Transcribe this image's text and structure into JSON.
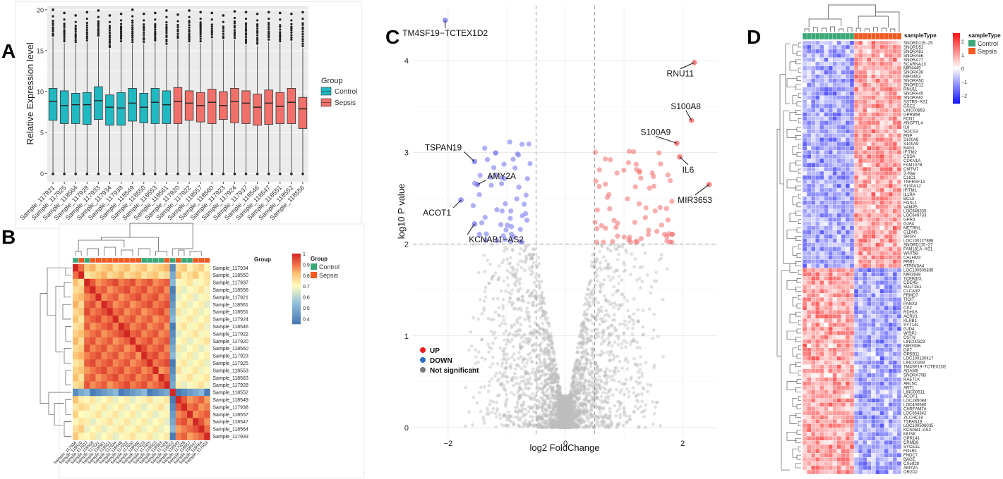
{
  "panels": {
    "a": "A",
    "b": "B",
    "c": "C",
    "d": "D"
  },
  "colors": {
    "control": "#20b9c2",
    "sepsis": "#f2706a",
    "anno_control": "#3aa776",
    "anno_sepsis": "#f25a1f",
    "up": "#f36b6b",
    "down": "#7a7cf0",
    "ns": "#bdbdbd"
  },
  "chart_data": [
    {
      "id": "A",
      "type": "box",
      "title": "",
      "ylabel": "Relative Expression level",
      "xlabel": "",
      "ylim": [
        -1,
        20.5
      ],
      "yticks": [
        "0",
        "5",
        "10",
        "15",
        "20"
      ],
      "legend": {
        "title": "Group",
        "items": [
          "Control",
          "Sepsis"
        ]
      },
      "categories": [
        "Sample_117921",
        "Sample_117925",
        "Sample_118564",
        "Sample_117928",
        "Sample_117933",
        "Sample_117934",
        "Sample_117938",
        "Sample_118549",
        "Sample_118550",
        "Sample_118553",
        "Sample_118561",
        "Sample_117920",
        "Sample_117922",
        "Sample_118557",
        "Sample_118560",
        "Sample_117923",
        "Sample_117924",
        "Sample_117937",
        "Sample_118546",
        "Sample_118547",
        "Sample_118551",
        "Sample_118552",
        "Sample_118556"
      ],
      "groups": [
        "Control",
        "Control",
        "Control",
        "Control",
        "Control",
        "Control",
        "Control",
        "Control",
        "Control",
        "Control",
        "Control",
        "Sepsis",
        "Sepsis",
        "Sepsis",
        "Sepsis",
        "Sepsis",
        "Sepsis",
        "Sepsis",
        "Sepsis",
        "Sepsis",
        "Sepsis",
        "Sepsis",
        "Sepsis"
      ],
      "q1": [
        6.5,
        6.1,
        6.1,
        6.0,
        6.6,
        5.9,
        5.9,
        6.4,
        6.2,
        6.1,
        6.1,
        6.1,
        6.5,
        6.3,
        6.1,
        6.6,
        6.2,
        6.1,
        5.9,
        6.0,
        6.1,
        6.1,
        5.5
      ],
      "median": [
        8.8,
        8.3,
        8.4,
        8.4,
        8.9,
        8.1,
        8.0,
        8.6,
        8.1,
        8.7,
        8.4,
        8.8,
        8.6,
        8.3,
        8.7,
        8.3,
        8.8,
        8.6,
        8.1,
        8.6,
        8.2,
        8.7,
        7.9
      ],
      "q3": [
        10.4,
        10.1,
        9.8,
        9.9,
        10.6,
        9.6,
        9.9,
        10.4,
        9.8,
        10.4,
        10.1,
        10.5,
        10.1,
        9.9,
        10.3,
        10.0,
        10.4,
        10.1,
        9.7,
        10.2,
        9.9,
        10.4,
        9.3
      ],
      "whisker_hi": [
        16.6,
        15.9,
        15.8,
        16.0,
        16.6,
        15.2,
        15.9,
        15.8,
        15.8,
        16.0,
        15.6,
        16.3,
        15.9,
        15.9,
        16.4,
        16.3,
        16.3,
        15.7,
        15.6,
        16.1,
        15.9,
        16.1,
        15.3
      ],
      "whisker_lo": [
        0,
        0,
        0,
        0,
        0,
        0,
        0,
        0,
        0,
        0,
        0,
        0,
        0,
        0,
        0,
        0,
        0,
        0,
        0,
        0,
        0,
        0,
        0
      ],
      "max_outlier": [
        20.0,
        19.6,
        19.3,
        19.7,
        19.9,
        19.3,
        19.5,
        20.0,
        19.5,
        19.6,
        19.9,
        19.4,
        19.9,
        19.7,
        19.6,
        19.3,
        19.8,
        19.7,
        19.5,
        19.7,
        19.6,
        19.5,
        19.7
      ]
    },
    {
      "id": "B",
      "type": "heatmap",
      "title": "",
      "legend": {
        "title": "Group",
        "items": [
          "Control",
          "Sepsis"
        ],
        "colorbar_ticks": [
          "1",
          "0.9",
          "0.8",
          "0.7",
          "0.6",
          "0.5",
          "0.4"
        ]
      },
      "annotation_label": "Group",
      "rows": [
        "Sample_117934",
        "Sample_118550",
        "Sample_117937",
        "Sample_118556",
        "Sample_117921",
        "Sample_118561",
        "Sample_118551",
        "Sample_117924",
        "Sample_118546",
        "Sample_117922",
        "Sample_117920",
        "Sample_118560",
        "Sample_117923",
        "Sample_117925",
        "Sample_118553",
        "Sample_118563",
        "Sample_117928",
        "Sample_118552",
        "Sample_118549",
        "Sample_117938",
        "Sample_118557",
        "Sample_118547",
        "Sample_118564",
        "Sample_117933"
      ]
    },
    {
      "id": "C",
      "type": "scatter",
      "title": "",
      "xlabel": "log2 FoldChange",
      "ylabel": "log10 P value",
      "xlim": [
        -2.6,
        2.6
      ],
      "ylim": [
        -0.1,
        4.6
      ],
      "xticks": [
        "-2",
        "0",
        "2"
      ],
      "yticks": [
        "0",
        "1",
        "2",
        "3",
        "4"
      ],
      "thresholds": {
        "x": [
          -0.5,
          0.5
        ],
        "y": 2
      },
      "legend": {
        "items": [
          "UP",
          "DOWN",
          "Not significant"
        ]
      },
      "labeled_points": [
        {
          "label": "TM4SF19−TCTEX1D2",
          "x": -2.05,
          "y": 4.44
        },
        {
          "label": "TSPAN19",
          "x": -1.55,
          "y": 2.9
        },
        {
          "label": "AMY2A",
          "x": -1.5,
          "y": 2.65
        },
        {
          "label": "ACOT1",
          "x": -1.78,
          "y": 2.48
        },
        {
          "label": "KCNAB1−AS2",
          "x": -1.55,
          "y": 2.22
        },
        {
          "label": "RNU11",
          "x": 2.2,
          "y": 3.98
        },
        {
          "label": "S100A8",
          "x": 2.15,
          "y": 3.35
        },
        {
          "label": "S100A9",
          "x": 1.9,
          "y": 3.1
        },
        {
          "label": "IL6",
          "x": 1.95,
          "y": 2.95
        },
        {
          "label": "MIR3653",
          "x": 2.45,
          "y": 2.65
        }
      ]
    },
    {
      "id": "D",
      "type": "heatmap",
      "title": "",
      "annotation_label": "sampleType",
      "legend": {
        "title": "sampleType",
        "items": [
          "Control",
          "Sepsis"
        ],
        "colorbar_ticks": [
          "2",
          "1",
          "0",
          "−1",
          "−2"
        ]
      },
      "genes": [
        "SNORD115−25",
        "SNORD52",
        "SNORA81",
        "SNORA56",
        "SNORA77",
        "SCARNA13",
        "MIR4449",
        "SNORA39",
        "MIR3653",
        "SNORA5C",
        "SNORD12",
        "RNU11",
        "SNORA45",
        "SNORA62",
        "SSTR5−AS1",
        "GSC2",
        "LINC00853",
        "GPR86B",
        "FCN1",
        "ANGPTL4",
        "IL6",
        "SOCS3",
        "PNP",
        "S100A8",
        "S100A9",
        "B4G3",
        "IFITM2",
        "CSDA",
        "CDKN1A",
        "FAM107B",
        "CMTM7",
        "3−Mar",
        "CLIC1",
        "TNFRSF1A",
        "S100A12",
        "IFITM1",
        "IL1RA",
        "BCL3",
        "FOSL1",
        "VAMP5",
        "LOC646330",
        "LOC649733",
        "GPR4",
        "GJA4",
        "METRNL",
        "CLDN5",
        "SRGN",
        "LOC100127888",
        "SNORD115−27",
        "FAM181A−AS1",
        "WNT5B",
        "CALHM3",
        "PRB1",
        "ATP6V0A4",
        "LOC100505835",
        "MIR3648",
        "TCEB3CL",
        "CDC45",
        "SULT1E1",
        "CLCA3P",
        "FRMD7",
        "TIGIT",
        "PANX3",
        "CPZ",
        "RDH16",
        "ACRV1",
        "KLRB1",
        "SYT14L",
        "GJD4",
        "WISP2",
        "OSTN",
        "LINC00323",
        "MIR3936",
        "DPT",
        "OR5B11",
        "LOC100130417",
        "LINC00293",
        "TM4SF19−TCTEX1D2",
        "ADAM8",
        "SNORA70B",
        "RAET1K",
        "ARL5C",
        "ART1",
        "LINC00511",
        "ACOT1",
        "LOC285084",
        "LOC400680",
        "CHRFAM7A",
        "LOC654342",
        "ZCCHC18",
        "TSPAN19",
        "LOC100506035",
        "KCNAB1−AS2",
        "MUSK",
        "GPR141",
        "CRMD8",
        "SYCE1L",
        "FOLR1",
        "FNDC7",
        "BAGE",
        "CXorf28",
        "AMY2A",
        "OR2D2"
      ]
    }
  ]
}
